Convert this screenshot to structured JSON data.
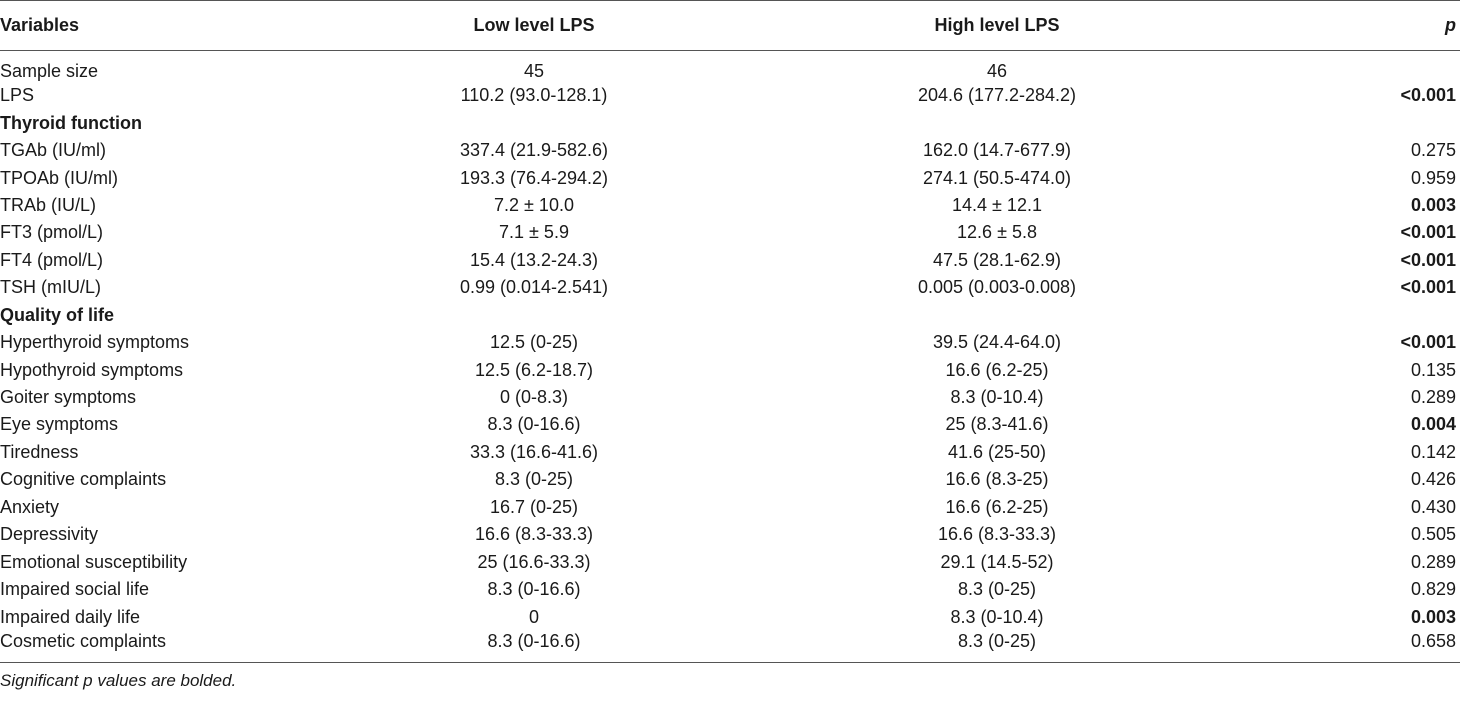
{
  "table": {
    "headers": {
      "variables": "Variables",
      "low": "Low level LPS",
      "high": "High level LPS",
      "p": "p"
    },
    "rows": [
      {
        "label": "Sample size",
        "low": "45",
        "high": "46",
        "p": "",
        "section": false,
        "bold_p": false
      },
      {
        "label": "LPS",
        "low": "110.2 (93.0-128.1)",
        "high": "204.6 (177.2-284.2)",
        "p": "<0.001",
        "section": false,
        "bold_p": true
      },
      {
        "label": "Thyroid function",
        "low": "",
        "high": "",
        "p": "",
        "section": true,
        "bold_p": false
      },
      {
        "label": "TGAb (IU/ml)",
        "low": "337.4 (21.9-582.6)",
        "high": "162.0 (14.7-677.9)",
        "p": "0.275",
        "section": false,
        "bold_p": false
      },
      {
        "label": "TPOAb (IU/ml)",
        "low": "193.3 (76.4-294.2)",
        "high": "274.1 (50.5-474.0)",
        "p": "0.959",
        "section": false,
        "bold_p": false
      },
      {
        "label": "TRAb (IU/L)",
        "low": "7.2 ± 10.0",
        "high": "14.4 ± 12.1",
        "p": "0.003",
        "section": false,
        "bold_p": true
      },
      {
        "label": "FT3 (pmol/L)",
        "low": "7.1 ± 5.9",
        "high": "12.6 ± 5.8",
        "p": "<0.001",
        "section": false,
        "bold_p": true
      },
      {
        "label": "FT4 (pmol/L)",
        "low": "15.4 (13.2-24.3)",
        "high": "47.5 (28.1-62.9)",
        "p": "<0.001",
        "section": false,
        "bold_p": true
      },
      {
        "label": "TSH (mIU/L)",
        "low": "0.99 (0.014-2.541)",
        "high": "0.005 (0.003-0.008)",
        "p": "<0.001",
        "section": false,
        "bold_p": true
      },
      {
        "label": "Quality of life",
        "low": "",
        "high": "",
        "p": "",
        "section": true,
        "bold_p": false
      },
      {
        "label": "Hyperthyroid symptoms",
        "low": "12.5 (0-25)",
        "high": "39.5 (24.4-64.0)",
        "p": "<0.001",
        "section": false,
        "bold_p": true
      },
      {
        "label": "Hypothyroid symptoms",
        "low": "12.5 (6.2-18.7)",
        "high": "16.6 (6.2-25)",
        "p": "0.135",
        "section": false,
        "bold_p": false
      },
      {
        "label": "Goiter symptoms",
        "low": "0 (0-8.3)",
        "high": "8.3 (0-10.4)",
        "p": "0.289",
        "section": false,
        "bold_p": false
      },
      {
        "label": "Eye symptoms",
        "low": "8.3 (0-16.6)",
        "high": "25 (8.3-41.6)",
        "p": "0.004",
        "section": false,
        "bold_p": true
      },
      {
        "label": "Tiredness",
        "low": "33.3 (16.6-41.6)",
        "high": "41.6 (25-50)",
        "p": "0.142",
        "section": false,
        "bold_p": false
      },
      {
        "label": "Cognitive complaints",
        "low": "8.3 (0-25)",
        "high": "16.6 (8.3-25)",
        "p": "0.426",
        "section": false,
        "bold_p": false
      },
      {
        "label": "Anxiety",
        "low": "16.7 (0-25)",
        "high": "16.6 (6.2-25)",
        "p": "0.430",
        "section": false,
        "bold_p": false
      },
      {
        "label": "Depressivity",
        "low": "16.6 (8.3-33.3)",
        "high": "16.6 (8.3-33.3)",
        "p": "0.505",
        "section": false,
        "bold_p": false
      },
      {
        "label": "Emotional susceptibility",
        "low": "25 (16.6-33.3)",
        "high": "29.1 (14.5-52)",
        "p": "0.289",
        "section": false,
        "bold_p": false
      },
      {
        "label": "Impaired social life",
        "low": "8.3 (0-16.6)",
        "high": "8.3 (0-25)",
        "p": "0.829",
        "section": false,
        "bold_p": false
      },
      {
        "label": "Impaired daily life",
        "low": "0",
        "high": "8.3 (0-10.4)",
        "p": "0.003",
        "section": false,
        "bold_p": true
      },
      {
        "label": "Cosmetic complaints",
        "low": "8.3 (0-16.6)",
        "high": "8.3 (0-25)",
        "p": "0.658",
        "section": false,
        "bold_p": false
      }
    ],
    "footnote": "Significant p values are bolded."
  }
}
